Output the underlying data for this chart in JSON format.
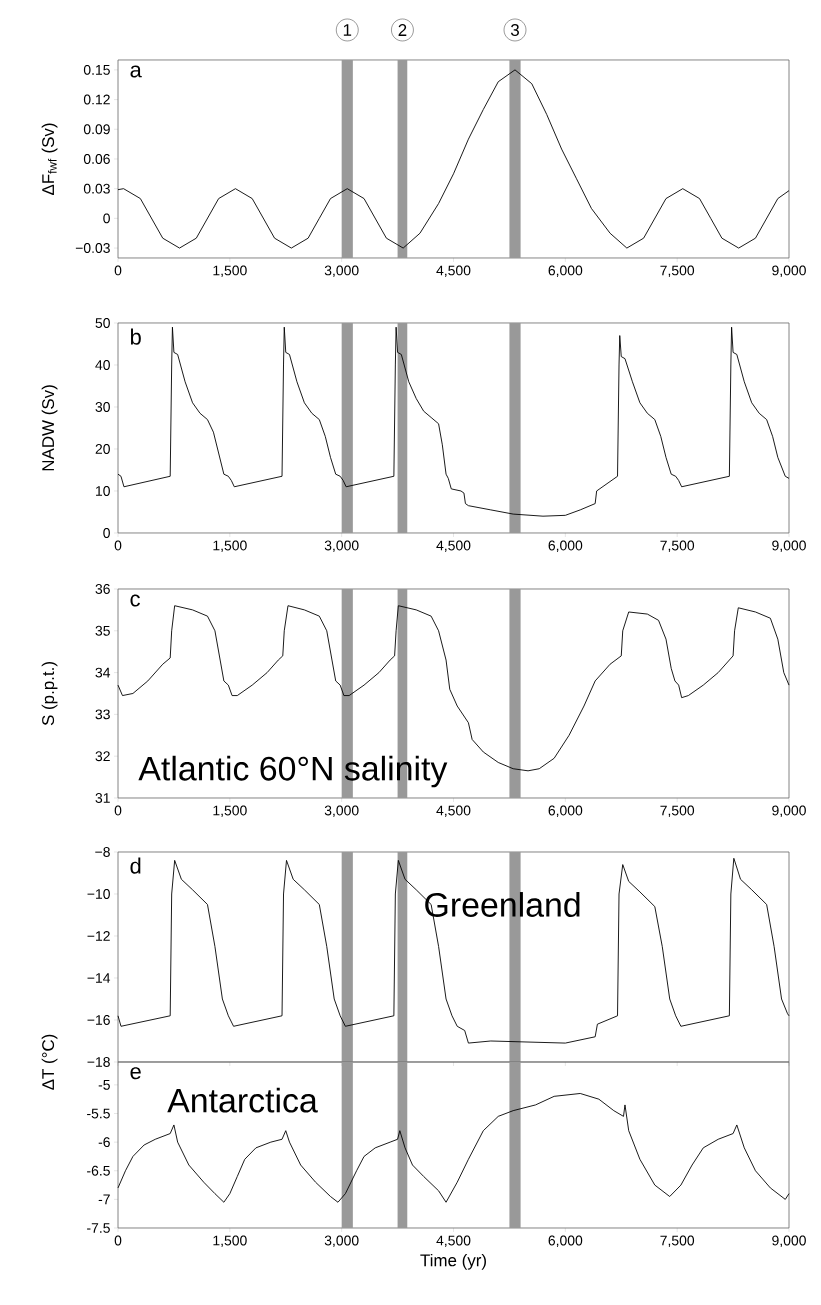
{
  "chart_data": [
    {
      "type": "line",
      "ylabel": "ΔF$_{fwf}$ (Sv)",
      "annotations": [
        "a"
      ],
      "x": [
        0,
        75,
        300,
        450,
        600,
        825,
        1050,
        1200,
        1350,
        1575,
        1800,
        1950,
        2100,
        2325,
        2550,
        2700,
        2850,
        3075,
        3300,
        3450,
        3600,
        3825,
        4050,
        4300,
        4500,
        4700,
        4900,
        5100,
        5325,
        5550,
        5750,
        5950,
        6150,
        6350,
        6600,
        6825,
        7050,
        7200,
        7350,
        7575,
        7800,
        7950,
        8100,
        8325,
        8550,
        8700,
        8850,
        9000
      ],
      "series": [
        {
          "color": "#000000",
          "values": [
            0.029,
            0.03,
            0.02,
            0.0,
            -0.02,
            -0.03,
            -0.02,
            0.0,
            0.02,
            0.03,
            0.02,
            0.0,
            -0.02,
            -0.03,
            -0.02,
            0.0,
            0.02,
            0.03,
            0.02,
            0.0,
            -0.02,
            -0.03,
            -0.015,
            0.015,
            0.045,
            0.08,
            0.11,
            0.138,
            0.15,
            0.136,
            0.105,
            0.07,
            0.04,
            0.01,
            -0.015,
            -0.03,
            -0.02,
            0.0,
            0.02,
            0.03,
            0.02,
            0.0,
            -0.02,
            -0.03,
            -0.02,
            0.0,
            0.02,
            0.028
          ]
        }
      ],
      "xlim": [
        0,
        9000
      ],
      "xticks": [
        0,
        {
          "value": 1500,
          "label": "1,500"
        },
        {
          "value": 3000,
          "label": "3,000"
        },
        {
          "value": 4500,
          "label": "4,500"
        },
        {
          "value": 6000,
          "label": "6,000"
        },
        {
          "value": 7500,
          "label": "7,500"
        },
        {
          "value": 9000,
          "label": "9,000"
        }
      ],
      "ylim": [
        -0.04,
        0.16
      ],
      "yticks": [
        {
          "value": -0.03,
          "label": "−0.03"
        },
        0,
        0.03,
        0.06,
        0.09,
        0.12,
        0.15
      ],
      "bands": [
        {
          "axis": "x",
          "from": 3000,
          "to": 3150,
          "label": "1",
          "color": "#999999"
        },
        {
          "axis": "x",
          "from": 3750,
          "to": 3880,
          "label": "2",
          "color": "#999999"
        },
        {
          "axis": "x",
          "from": 5250,
          "to": 5400,
          "label": "3",
          "color": "#999999"
        }
      ]
    },
    {
      "type": "line",
      "ylabel": "NADW (Sv)",
      "annotations": [
        "b"
      ],
      "x": [
        0,
        40,
        80,
        700,
        720,
        730,
        750,
        800,
        900,
        1000,
        1100,
        1200,
        1280,
        1350,
        1420,
        1480,
        1520,
        1560,
        2200,
        2220,
        2230,
        2250,
        2300,
        2400,
        2500,
        2600,
        2700,
        2780,
        2850,
        2920,
        2980,
        3020,
        3060,
        3700,
        3720,
        3730,
        3750,
        3800,
        3900,
        4000,
        4100,
        4200,
        4300,
        4350,
        4400,
        4430,
        4470,
        4600,
        4640,
        4660,
        4700,
        5000,
        5300,
        5700,
        6000,
        6200,
        6400,
        6420,
        6700,
        6720,
        6730,
        6750,
        6800,
        6900,
        7000,
        7100,
        7200,
        7280,
        7350,
        7420,
        7480,
        7520,
        7560,
        8200,
        8220,
        8230,
        8250,
        8300,
        8400,
        8500,
        8600,
        8700,
        8780,
        8850,
        8950,
        9000
      ],
      "series": [
        {
          "color": "#000000",
          "values": [
            14,
            13.5,
            11,
            13.5,
            40,
            49,
            43,
            42.5,
            36,
            31,
            28.5,
            27,
            24,
            19,
            14,
            13.5,
            12.5,
            11,
            13.5,
            40,
            49,
            43,
            42.5,
            36,
            31,
            28.5,
            27,
            23,
            18,
            14,
            13.5,
            12.5,
            11,
            13.5,
            40,
            49,
            43,
            42.5,
            36,
            32,
            29,
            27.5,
            26,
            21,
            14,
            13,
            10.5,
            10,
            9.5,
            7,
            6.5,
            5.5,
            4.5,
            4,
            4.2,
            5.5,
            7,
            10,
            13.5,
            40,
            47,
            42,
            41.5,
            36,
            31,
            28.5,
            27,
            23,
            18,
            14,
            13.5,
            12.5,
            11,
            13.5,
            40,
            49,
            43,
            42.5,
            36,
            31,
            28.5,
            27,
            23,
            18,
            13.5,
            13
          ]
        }
      ],
      "xlim": [
        0,
        9000
      ],
      "xticks": [
        0,
        {
          "value": 1500,
          "label": "1,500"
        },
        {
          "value": 3000,
          "label": "3,000"
        },
        {
          "value": 4500,
          "label": "4,500"
        },
        {
          "value": 6000,
          "label": "6,000"
        },
        {
          "value": 7500,
          "label": "7,500"
        },
        {
          "value": 9000,
          "label": "9,000"
        }
      ],
      "ylim": [
        0,
        50
      ],
      "yticks": [
        0,
        10,
        20,
        30,
        40,
        50
      ],
      "bands": [
        {
          "axis": "x",
          "from": 3000,
          "to": 3150,
          "color": "#999999"
        },
        {
          "axis": "x",
          "from": 3750,
          "to": 3880,
          "color": "#999999"
        },
        {
          "axis": "x",
          "from": 5250,
          "to": 5400,
          "color": "#999999"
        }
      ]
    },
    {
      "type": "line",
      "ylabel": "S (p.p.t.)",
      "annotations": [
        "c",
        "Atlantic  60°N salinity"
      ],
      "x": [
        0,
        60,
        200,
        400,
        600,
        700,
        720,
        760,
        1000,
        1200,
        1300,
        1370,
        1420,
        1480,
        1530,
        1600,
        1800,
        2000,
        2150,
        2210,
        2230,
        2280,
        2500,
        2700,
        2800,
        2870,
        2920,
        2980,
        3030,
        3100,
        3300,
        3500,
        3650,
        3710,
        3730,
        3760,
        4000,
        4200,
        4300,
        4400,
        4450,
        4550,
        4700,
        4750,
        4900,
        5100,
        5300,
        5500,
        5650,
        5850,
        6050,
        6250,
        6400,
        6600,
        6750,
        6770,
        6850,
        7100,
        7250,
        7350,
        7420,
        7470,
        7520,
        7560,
        7650,
        7850,
        8050,
        8200,
        8250,
        8270,
        8320,
        8550,
        8750,
        8850,
        8930,
        9000
      ],
      "series": [
        {
          "color": "#000000",
          "values": [
            33.7,
            33.45,
            33.5,
            33.8,
            34.2,
            34.35,
            35.0,
            35.6,
            35.5,
            35.35,
            35.0,
            34.3,
            33.8,
            33.7,
            33.45,
            33.45,
            33.7,
            34.0,
            34.3,
            34.4,
            35.0,
            35.6,
            35.5,
            35.35,
            35.0,
            34.3,
            33.8,
            33.7,
            33.45,
            33.45,
            33.7,
            34.0,
            34.3,
            34.4,
            35.0,
            35.6,
            35.5,
            35.35,
            35.0,
            34.3,
            33.6,
            33.2,
            32.8,
            32.4,
            32.1,
            31.85,
            31.7,
            31.65,
            31.7,
            31.95,
            32.5,
            33.2,
            33.8,
            34.2,
            34.4,
            35.0,
            35.45,
            35.4,
            35.25,
            34.8,
            34.1,
            33.8,
            33.7,
            33.4,
            33.45,
            33.7,
            34.0,
            34.3,
            34.4,
            35.0,
            35.55,
            35.45,
            35.3,
            34.8,
            34.0,
            33.7
          ]
        }
      ],
      "xlim": [
        0,
        9000
      ],
      "xticks": [
        0,
        {
          "value": 1500,
          "label": "1,500"
        },
        {
          "value": 3000,
          "label": "3,000"
        },
        {
          "value": 4500,
          "label": "4,500"
        },
        {
          "value": 6000,
          "label": "6,000"
        },
        {
          "value": 7500,
          "label": "7,500"
        },
        {
          "value": 9000,
          "label": "9,000"
        }
      ],
      "ylim": [
        31,
        36
      ],
      "yticks": [
        31,
        32,
        33,
        34,
        35,
        36
      ],
      "bands": [
        {
          "axis": "x",
          "from": 3000,
          "to": 3150,
          "color": "#999999"
        },
        {
          "axis": "x",
          "from": 3750,
          "to": 3880,
          "color": "#999999"
        },
        {
          "axis": "x",
          "from": 5250,
          "to": 5400,
          "color": "#999999"
        }
      ]
    },
    {
      "type": "line",
      "annotations": [
        "d",
        "Greenland"
      ],
      "tick_labels": "y",
      "x": [
        0,
        40,
        700,
        720,
        760,
        850,
        1000,
        1200,
        1300,
        1400,
        1480,
        1550,
        2200,
        2220,
        2260,
        2350,
        2500,
        2700,
        2800,
        2900,
        2980,
        3050,
        3700,
        3720,
        3760,
        3850,
        4000,
        4200,
        4300,
        4400,
        4480,
        4550,
        4650,
        4700,
        5000,
        5500,
        6000,
        6400,
        6430,
        6700,
        6720,
        6770,
        6850,
        7000,
        7200,
        7300,
        7400,
        7480,
        7550,
        8200,
        8220,
        8260,
        8350,
        8500,
        8700,
        8800,
        8900,
        8980,
        9000
      ],
      "series": [
        {
          "color": "#000000",
          "values": [
            -15.8,
            -16.3,
            -15.8,
            -10,
            -8.4,
            -9.3,
            -9.8,
            -10.5,
            -12.5,
            -15,
            -15.8,
            -16.3,
            -15.8,
            -10,
            -8.4,
            -9.3,
            -9.8,
            -10.5,
            -12.5,
            -15,
            -15.8,
            -16.3,
            -15.8,
            -10,
            -8.4,
            -9.3,
            -9.8,
            -10.5,
            -12.5,
            -15,
            -15.8,
            -16.3,
            -16.5,
            -17.1,
            -17.0,
            -17.05,
            -17.1,
            -16.8,
            -16.2,
            -15.8,
            -10,
            -8.6,
            -9.4,
            -9.9,
            -10.6,
            -12.5,
            -15,
            -15.8,
            -16.3,
            -15.8,
            -10,
            -8.3,
            -9.3,
            -9.8,
            -10.5,
            -12.5,
            -15,
            -15.7,
            -15.8
          ]
        }
      ],
      "xlim": [
        0,
        9000
      ],
      "xticks": [
        0,
        1500,
        3000,
        4500,
        6000,
        7500,
        9000
      ],
      "ylim": [
        -18,
        -8
      ],
      "yticks": [
        {
          "value": -18,
          "label": "−18"
        },
        {
          "value": -16,
          "label": "−16"
        },
        {
          "value": -14,
          "label": "−14"
        },
        {
          "value": -12,
          "label": "−12"
        },
        {
          "value": -10,
          "label": "−10"
        },
        {
          "value": -8,
          "label": "−8"
        }
      ],
      "bands": [
        {
          "axis": "x",
          "from": 3000,
          "to": 3150,
          "color": "#999999"
        },
        {
          "axis": "x",
          "from": 3750,
          "to": 3880,
          "color": "#999999"
        },
        {
          "axis": "x",
          "from": 5250,
          "to": 5400,
          "color": "#999999"
        }
      ]
    },
    {
      "type": "line",
      "ylabel": "ΔT (°C)",
      "xlabel": "Time (yr)",
      "annotations": [
        "e",
        "Antarctica"
      ],
      "x": [
        0,
        100,
        200,
        350,
        500,
        700,
        750,
        800,
        950,
        1150,
        1300,
        1420,
        1500,
        1600,
        1700,
        1850,
        2050,
        2200,
        2250,
        2300,
        2450,
        2650,
        2850,
        2950,
        3050,
        3200,
        3300,
        3450,
        3650,
        3750,
        3780,
        3850,
        3950,
        4100,
        4300,
        4400,
        4550,
        4700,
        4900,
        5100,
        5300,
        5600,
        5850,
        6200,
        6450,
        6650,
        6780,
        6800,
        6850,
        7000,
        7200,
        7400,
        7550,
        7700,
        7850,
        8050,
        8250,
        8300,
        8400,
        8550,
        8750,
        8950,
        9000
      ],
      "series": [
        {
          "color": "#000000",
          "values": [
            -6.8,
            -6.5,
            -6.25,
            -6.05,
            -5.95,
            -5.85,
            -5.7,
            -6.0,
            -6.4,
            -6.7,
            -6.9,
            -7.05,
            -6.9,
            -6.6,
            -6.3,
            -6.1,
            -6.0,
            -5.95,
            -5.8,
            -6.0,
            -6.4,
            -6.7,
            -6.95,
            -7.05,
            -6.9,
            -6.5,
            -6.25,
            -6.1,
            -6.0,
            -5.95,
            -5.8,
            -6.1,
            -6.4,
            -6.6,
            -6.85,
            -7.05,
            -6.7,
            -6.3,
            -5.8,
            -5.55,
            -5.45,
            -5.35,
            -5.2,
            -5.15,
            -5.25,
            -5.45,
            -5.55,
            -5.35,
            -5.8,
            -6.3,
            -6.75,
            -6.95,
            -6.75,
            -6.4,
            -6.1,
            -5.95,
            -5.85,
            -5.7,
            -6.1,
            -6.5,
            -6.8,
            -7.0,
            -6.9
          ]
        }
      ],
      "xlim": [
        0,
        9000
      ],
      "xticks": [
        0,
        {
          "value": 1500,
          "label": "1,500"
        },
        {
          "value": 3000,
          "label": "3,000"
        },
        {
          "value": 4500,
          "label": "4,500"
        },
        {
          "value": 6000,
          "label": "6,000"
        },
        {
          "value": 7500,
          "label": "7,500"
        },
        {
          "value": 9000,
          "label": "9,000"
        }
      ],
      "ylim": [
        -7.5,
        -4.6
      ],
      "yticks": [
        -7.5,
        -7,
        -6.5,
        -6,
        -5.5,
        -5
      ],
      "bands": [
        {
          "axis": "x",
          "from": 3000,
          "to": 3150,
          "color": "#999999"
        },
        {
          "axis": "x",
          "from": 3750,
          "to": 3880,
          "color": "#999999"
        },
        {
          "axis": "x",
          "from": 5250,
          "to": 5400,
          "color": "#999999"
        }
      ]
    }
  ]
}
